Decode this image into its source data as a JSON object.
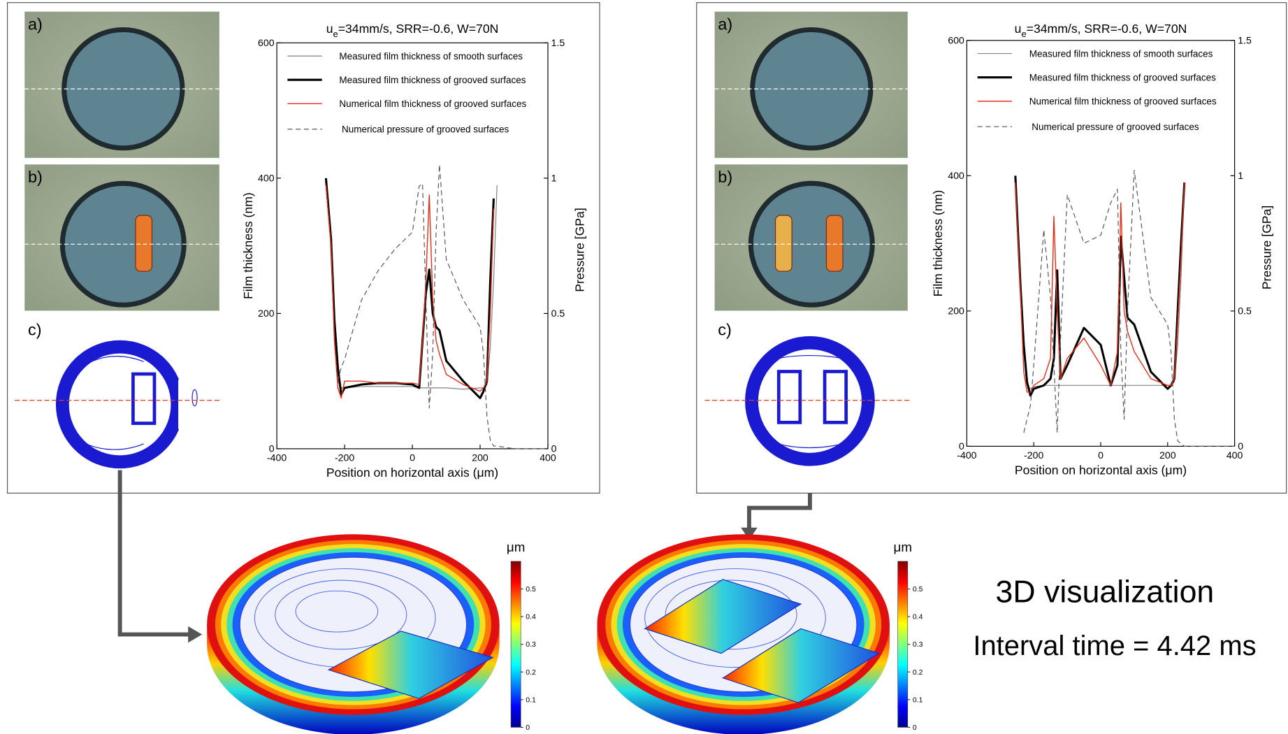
{
  "chart_data": [
    {
      "type": "line",
      "title": [
        "u",
        "e",
        "=34mm/s, SRR=-0.6, W=70N"
      ],
      "xlabel": "Position on horizontal axis (μm)",
      "ylabel": "Film thickness (nm)",
      "y2label": "Pressure [GPa]",
      "x": [
        -255,
        -240,
        -230,
        -220,
        -210,
        -200,
        -150,
        -100,
        -50,
        0,
        20,
        30,
        40,
        50,
        60,
        70,
        80,
        100,
        150,
        200,
        210,
        220,
        230,
        240,
        250,
        300,
        350,
        400
      ],
      "series": [
        {
          "name": "Measured film thickness of smooth surfaces",
          "color": "#808080",
          "linewidth": 1,
          "values": [
            390,
            300,
            190,
            100,
            90,
            90,
            92,
            92,
            92,
            92,
            90,
            90,
            90,
            90,
            90,
            90,
            90,
            90,
            88,
            90,
            90,
            95,
            150,
            250,
            390,
            null,
            null,
            null
          ]
        },
        {
          "name": "Measured film thickness of grooved surfaces",
          "color": "#000000",
          "linewidth": 2.6,
          "values": [
            400,
            310,
            190,
            120,
            80,
            90,
            95,
            97,
            97,
            95,
            90,
            160,
            230,
            265,
            200,
            180,
            175,
            130,
            100,
            75,
            85,
            100,
            250,
            370,
            null,
            null,
            null,
            null
          ]
        },
        {
          "name": "Numerical film thickness of grooved surfaces",
          "color": "#e0301a",
          "linewidth": 1.2,
          "values": [
            390,
            300,
            160,
            90,
            75,
            100,
            100,
            97,
            97,
            97,
            95,
            160,
            250,
            375,
            220,
            160,
            140,
            110,
            95,
            85,
            90,
            100,
            200,
            355,
            null,
            null,
            null,
            null
          ]
        },
        {
          "name": "Numerical pressure of grooved surfaces",
          "color": "#555555",
          "linewidth": 1,
          "linestyle": "dashed",
          "axis": "y2",
          "values": [
            null,
            null,
            null,
            0.25,
            0.3,
            0.33,
            0.55,
            0.66,
            0.74,
            0.8,
            0.97,
            0.98,
            0.55,
            0.15,
            0.35,
            0.8,
            1.05,
            0.7,
            0.55,
            0.45,
            0.35,
            0.12,
            0.03,
            0.01,
            0.01,
            0,
            0,
            0
          ]
        }
      ],
      "xlim": [
        -400,
        400
      ],
      "xticks": [
        -400,
        -200,
        0,
        200,
        400
      ],
      "ylim": [
        0,
        600
      ],
      "yticks": [
        0,
        200,
        400,
        600
      ],
      "y2lim": [
        0,
        1.5
      ],
      "y2ticks": [
        0,
        0.5,
        1,
        1.5
      ],
      "grid": false,
      "legend": "upper center"
    },
    {
      "type": "line",
      "title": [
        "u",
        "e",
        "=34mm/s, SRR=-0.6, W=70N"
      ],
      "xlabel": "Position on horizontal axis (μm)",
      "ylabel": "Film thickness (nm)",
      "y2label": "Pressure [GPa]",
      "x": [
        -255,
        -240,
        -230,
        -220,
        -210,
        -200,
        -170,
        -150,
        -140,
        -130,
        -120,
        -100,
        -50,
        0,
        30,
        50,
        60,
        70,
        80,
        100,
        150,
        200,
        210,
        220,
        230,
        240,
        250,
        300,
        350,
        400
      ],
      "series": [
        {
          "name": "Measured film thickness of smooth surfaces",
          "color": "#808080",
          "linewidth": 1,
          "values": [
            390,
            250,
            150,
            90,
            85,
            88,
            90,
            90,
            90,
            90,
            90,
            90,
            90,
            90,
            90,
            90,
            90,
            90,
            90,
            90,
            90,
            90,
            90,
            95,
            150,
            250,
            390,
            null,
            null,
            null
          ]
        },
        {
          "name": "Measured film thickness of grooved surfaces",
          "color": "#000000",
          "linewidth": 2.6,
          "values": [
            400,
            240,
            150,
            95,
            75,
            85,
            90,
            100,
            130,
            260,
            100,
            120,
            175,
            150,
            90,
            120,
            310,
            250,
            190,
            180,
            110,
            85,
            90,
            100,
            200,
            300,
            390,
            null,
            null,
            null
          ]
        },
        {
          "name": "Numerical film thickness of grooved surfaces",
          "color": "#e0301a",
          "linewidth": 1.2,
          "values": [
            390,
            230,
            110,
            80,
            80,
            90,
            100,
            130,
            340,
            200,
            100,
            130,
            160,
            120,
            90,
            140,
            360,
            200,
            170,
            140,
            100,
            90,
            90,
            100,
            180,
            280,
            390,
            null,
            null,
            null
          ]
        },
        {
          "name": "Numerical pressure of grooved surfaces",
          "color": "#555555",
          "linewidth": 1,
          "linestyle": "dashed",
          "axis": "y2",
          "values": [
            null,
            null,
            0.05,
            0.1,
            0.15,
            0.3,
            0.8,
            0.55,
            0.3,
            0.05,
            0.4,
            0.93,
            0.75,
            0.78,
            0.9,
            0.95,
            0.35,
            0.1,
            0.5,
            1.02,
            0.55,
            0.45,
            0.35,
            0.1,
            0.02,
            0.01,
            0,
            0,
            0,
            0
          ]
        }
      ],
      "xlim": [
        -400,
        400
      ],
      "xticks": [
        -400,
        -200,
        0,
        200,
        400
      ],
      "ylim": [
        0,
        600
      ],
      "yticks": [
        0,
        200,
        400,
        600
      ],
      "y2lim": [
        0,
        1.5
      ],
      "y2ticks": [
        0,
        0.5,
        1,
        1.5
      ],
      "grid": false,
      "legend": "upper center"
    }
  ],
  "panels": [
    {
      "labels": [
        "a)",
        "b)",
        "c)"
      ]
    },
    {
      "labels": [
        "a)",
        "b)",
        "c)"
      ]
    }
  ],
  "colorbars": [
    {
      "unit": "μm",
      "lim": [
        0,
        0.6
      ],
      "ticks": [
        0,
        0.1,
        0.2,
        0.3,
        0.4,
        0.5
      ]
    },
    {
      "unit": "μm",
      "lim": [
        0,
        0.6
      ],
      "ticks": [
        0,
        0.1,
        0.2,
        0.3,
        0.4,
        0.5
      ]
    }
  ],
  "caption": {
    "title": "3D visualization",
    "interval": "Interval time = 4.42 ms"
  }
}
